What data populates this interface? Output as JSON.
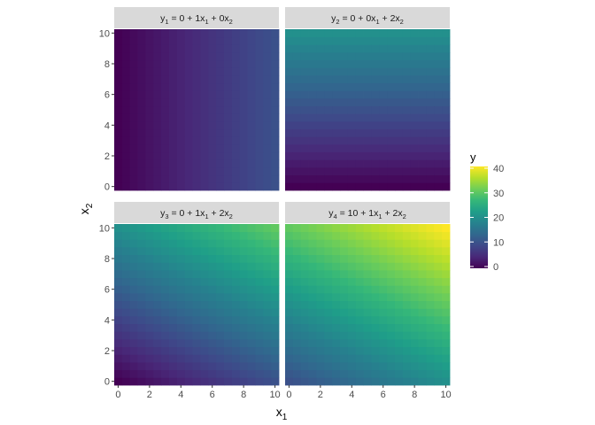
{
  "chart_data": {
    "type": "heatmap",
    "x_var": "x",
    "x_sub": "1",
    "y_var": "x",
    "y_sub": "2",
    "x_ticks": [
      "0",
      "2",
      "4",
      "6",
      "8",
      "10"
    ],
    "y_ticks": [
      "0",
      "2",
      "4",
      "6",
      "8",
      "10"
    ],
    "xlim": [
      0,
      10
    ],
    "ylim": [
      0,
      10
    ],
    "grid": false,
    "facets": [
      {
        "label": {
          "y_sub": "1",
          "eq": " = 0 + 1x",
          "s1": "1",
          "mid": " + 0x",
          "s2": "2"
        },
        "intercept": 0,
        "b1": 1,
        "b2": 0
      },
      {
        "label": {
          "y_sub": "2",
          "eq": " = 0 + 0x",
          "s1": "1",
          "mid": " + 2x",
          "s2": "2"
        },
        "intercept": 0,
        "b1": 0,
        "b2": 2
      },
      {
        "label": {
          "y_sub": "3",
          "eq": " = 0 + 1x",
          "s1": "1",
          "mid": " + 2x",
          "s2": "2"
        },
        "intercept": 0,
        "b1": 1,
        "b2": 2
      },
      {
        "label": {
          "y_sub": "4",
          "eq": " = 10 + 1x",
          "s1": "1",
          "mid": " + 2x",
          "s2": "2"
        },
        "intercept": 10,
        "b1": 1,
        "b2": 2
      }
    ],
    "legend": {
      "title": "y",
      "position": "right",
      "range": [
        0,
        40
      ],
      "ticks": [
        "0",
        "10",
        "20",
        "30",
        "40"
      ],
      "palette": "viridis"
    }
  }
}
